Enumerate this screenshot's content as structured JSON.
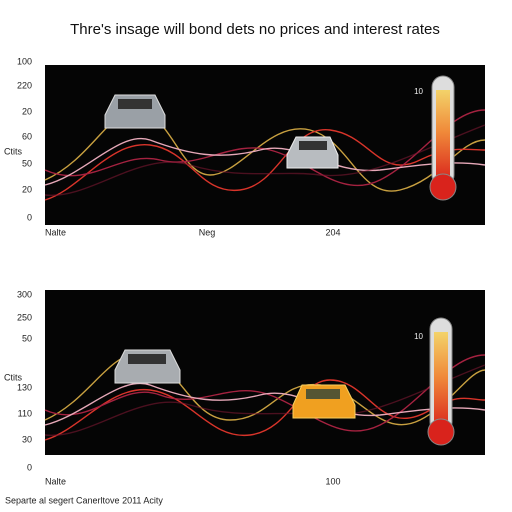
{
  "title": "Thre's insage will bond dets no prices and interest rates",
  "panels": [
    {
      "y_labels": [
        "100",
        "220",
        "20",
        "60",
        "50",
        "20",
        "0"
      ],
      "y_axis_label": "Ctits",
      "x_labels": [
        "Nalte",
        "Neg",
        "204"
      ],
      "thermometer_label": "10"
    },
    {
      "y_labels": [
        "300",
        "250",
        "50",
        "130",
        "110",
        "30",
        "0"
      ],
      "y_axis_label": "Ctits",
      "x_labels": [
        "Nalte",
        "100"
      ],
      "thermometer_label": "10"
    }
  ],
  "footer": "Separte al segert Canerltove 2011 Acity"
}
